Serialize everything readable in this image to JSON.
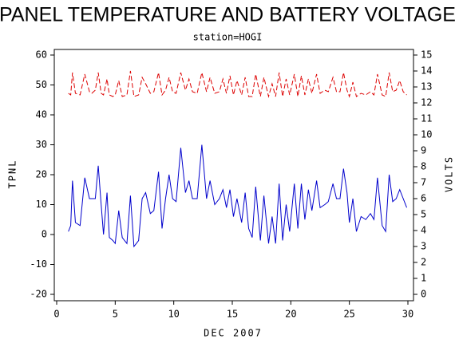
{
  "chart_data": {
    "type": "line",
    "title": "PANEL TEMPERATURE AND BATTERY VOLTAGE",
    "subtitle": "station=HOGI",
    "xlabel": "DEC 2007",
    "ylabel": "TPNL",
    "y2label": "VOLTS",
    "x": [
      1.0,
      1.2,
      1.35,
      1.6,
      2.0,
      2.4,
      2.8,
      3.0,
      3.3,
      3.55,
      3.8,
      4.0,
      4.3,
      4.5,
      4.8,
      5.0,
      5.3,
      5.6,
      6.0,
      6.3,
      6.6,
      7.0,
      7.3,
      7.6,
      8.0,
      8.3,
      8.7,
      9.0,
      9.3,
      9.6,
      9.9,
      10.2,
      10.6,
      11.0,
      11.3,
      11.6,
      12.0,
      12.4,
      12.8,
      13.1,
      13.5,
      13.9,
      14.2,
      14.5,
      14.8,
      15.1,
      15.4,
      15.8,
      16.1,
      16.4,
      16.7,
      17.0,
      17.4,
      17.7,
      18.1,
      18.4,
      18.7,
      19.0,
      19.3,
      19.6,
      19.9,
      20.3,
      20.6,
      20.9,
      21.2,
      21.5,
      21.8,
      22.2,
      22.5,
      22.9,
      23.2,
      23.6,
      23.9,
      24.2,
      24.5,
      24.8,
      25.0,
      25.3,
      25.6,
      26.0,
      26.4,
      26.8,
      27.1,
      27.4,
      27.8,
      28.1,
      28.4,
      28.7,
      29.0,
      29.3,
      29.6,
      29.9
    ],
    "series": [
      {
        "color": "#0000cc",
        "axis": "y",
        "values": [
          1,
          3,
          18,
          4,
          3,
          19,
          12,
          12,
          12,
          23,
          10,
          0,
          14,
          -1,
          -2,
          -3,
          8,
          -1,
          -3,
          13,
          -4,
          -2,
          12,
          14,
          7,
          8,
          21,
          2,
          12,
          20,
          12,
          11,
          29,
          14,
          18,
          12,
          12,
          30,
          12,
          18,
          10,
          12,
          15,
          9,
          15,
          6,
          12,
          4,
          14,
          2,
          -1,
          16,
          -2,
          13,
          -3,
          6,
          -3,
          17,
          -2,
          10,
          1,
          17,
          2,
          17,
          5,
          15,
          8,
          18,
          9,
          10,
          11,
          17,
          12,
          12,
          22,
          14,
          4,
          12,
          1,
          6,
          5,
          7,
          5,
          19,
          3,
          1,
          20,
          11,
          12,
          15,
          12,
          9
        ]
      },
      {
        "color": "#dd0000",
        "axis": "y2",
        "dashed": true,
        "values": [
          12.6,
          12.5,
          13.9,
          12.6,
          12.5,
          13.8,
          12.7,
          12.6,
          12.8,
          13.9,
          12.6,
          12.5,
          13.5,
          12.5,
          12.4,
          12.5,
          13.4,
          12.4,
          12.5,
          14.0,
          12.4,
          12.5,
          13.6,
          13.2,
          12.6,
          12.7,
          13.9,
          12.5,
          12.8,
          13.6,
          12.7,
          12.6,
          13.9,
          12.8,
          13.5,
          12.7,
          12.6,
          13.9,
          12.7,
          13.6,
          12.6,
          12.7,
          13.5,
          12.6,
          13.7,
          12.5,
          13.4,
          12.5,
          13.6,
          12.4,
          12.4,
          13.8,
          12.4,
          13.6,
          12.4,
          13.2,
          12.4,
          13.9,
          12.4,
          13.5,
          12.5,
          13.8,
          12.4,
          13.7,
          12.5,
          13.5,
          12.6,
          13.8,
          12.6,
          12.8,
          12.7,
          13.6,
          12.7,
          12.7,
          13.9,
          12.8,
          12.4,
          13.3,
          12.4,
          12.6,
          12.5,
          12.7,
          12.5,
          13.8,
          12.5,
          12.4,
          13.9,
          12.7,
          12.8,
          13.4,
          12.7,
          12.5
        ]
      }
    ],
    "xlim": [
      0,
      30
    ],
    "xticks": [
      0,
      5,
      10,
      15,
      20,
      25,
      30
    ],
    "ylim": [
      -20,
      60
    ],
    "yticks": [
      -20,
      -10,
      0,
      10,
      20,
      30,
      40,
      50,
      60
    ],
    "y2lim": [
      0,
      15
    ],
    "y2ticks": [
      0,
      1,
      2,
      3,
      4,
      5,
      6,
      7,
      8,
      9,
      10,
      11,
      12,
      13,
      14,
      15
    ]
  }
}
